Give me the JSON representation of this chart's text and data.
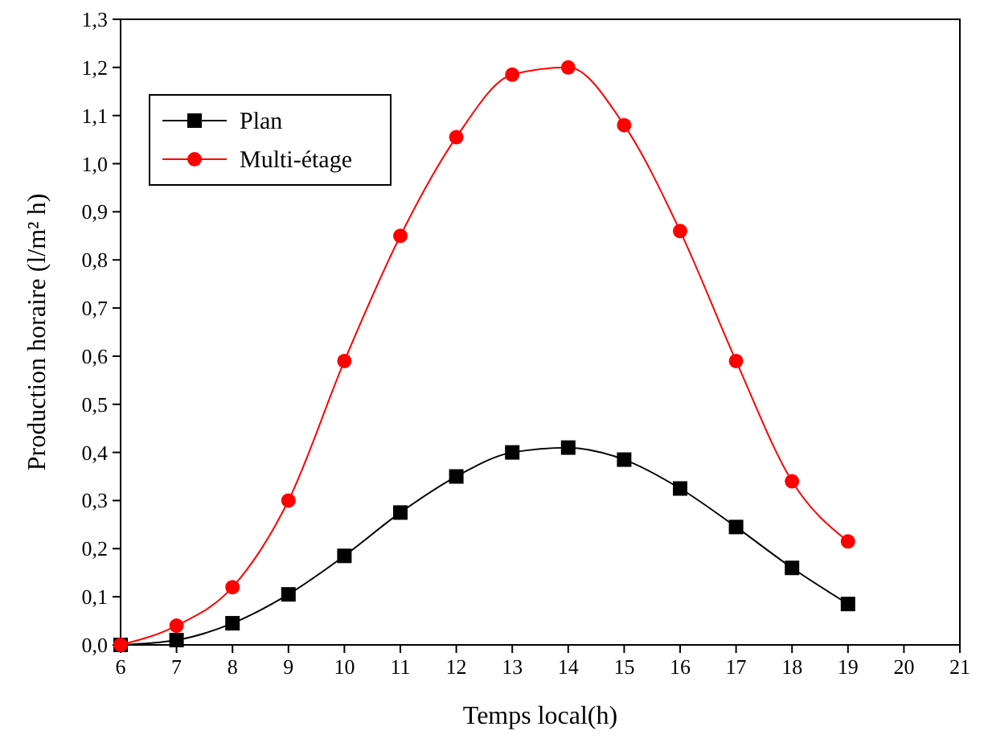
{
  "chart_data": {
    "type": "line",
    "xlabel": "Temps local(h)",
    "ylabel": "Production horaire (l/m² h)",
    "x": [
      6,
      7,
      8,
      9,
      10,
      11,
      12,
      13,
      14,
      15,
      16,
      17,
      18,
      19
    ],
    "series": [
      {
        "name": "Plan",
        "color": "#000000",
        "marker": "square",
        "values": [
          0.0,
          0.01,
          0.045,
          0.105,
          0.185,
          0.275,
          0.35,
          0.4,
          0.41,
          0.385,
          0.325,
          0.245,
          0.16,
          0.085
        ]
      },
      {
        "name": "Multi-étage",
        "color": "#ff0000",
        "marker": "circle",
        "values": [
          0.0,
          0.04,
          0.12,
          0.3,
          0.59,
          0.85,
          1.055,
          1.185,
          1.2,
          1.08,
          0.86,
          0.59,
          0.34,
          0.215
        ]
      }
    ],
    "xlim": [
      6,
      21
    ],
    "xticks": [
      6,
      7,
      8,
      9,
      10,
      11,
      12,
      13,
      14,
      15,
      16,
      17,
      18,
      19,
      20,
      21
    ],
    "ylim": [
      0,
      1.3
    ],
    "yticks": [
      {
        "value": 0,
        "label": "0,0"
      },
      {
        "value": 0.1,
        "label": "0,1"
      },
      {
        "value": 0.2,
        "label": "0,2"
      },
      {
        "value": 0.3,
        "label": "0,3"
      },
      {
        "value": 0.4,
        "label": "0,4"
      },
      {
        "value": 0.5,
        "label": "0,5"
      },
      {
        "value": 0.6,
        "label": "0,6"
      },
      {
        "value": 0.7,
        "label": "0,7"
      },
      {
        "value": 0.8,
        "label": "0,8"
      },
      {
        "value": 0.9,
        "label": "0,9"
      },
      {
        "value": 1.0,
        "label": "1,0"
      },
      {
        "value": 1.1,
        "label": "1,1"
      },
      {
        "value": 1.2,
        "label": "1,2"
      },
      {
        "value": 1.3,
        "label": "1,3"
      }
    ],
    "grid": false,
    "legend": "top left",
    "line_style": "solid"
  }
}
